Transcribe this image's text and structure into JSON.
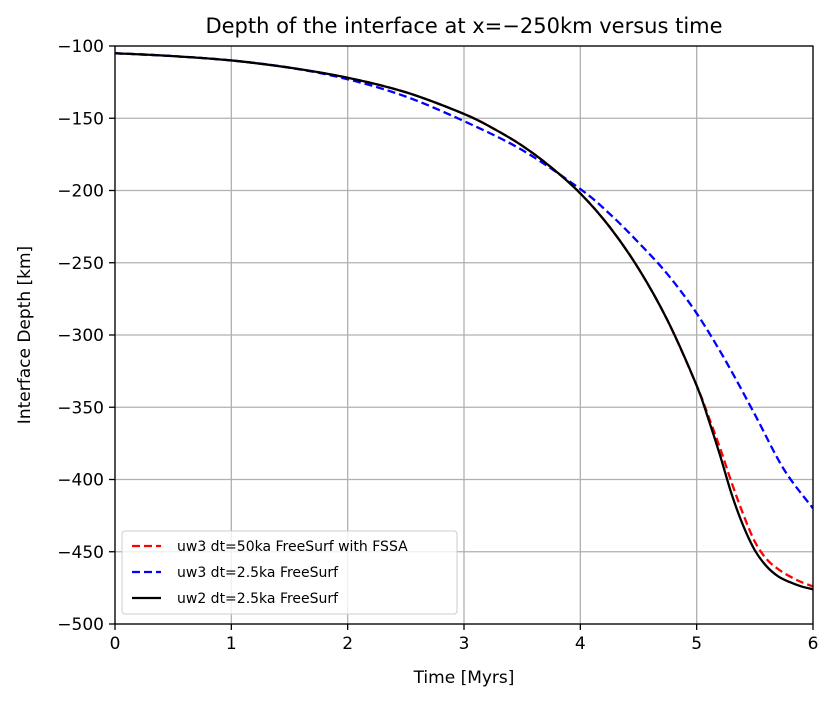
{
  "chart_data": {
    "type": "line",
    "title": "Depth of the interface at x=−250km versus time",
    "xlabel": "Time [Myrs]",
    "ylabel": "Interface Depth [km]",
    "xlim": [
      0,
      6
    ],
    "ylim": [
      -500,
      -100
    ],
    "xticks": [
      0,
      1,
      2,
      3,
      4,
      5,
      6
    ],
    "xtick_labels": [
      "0",
      "1",
      "2",
      "3",
      "4",
      "5",
      "6"
    ],
    "yticks": [
      -500,
      -450,
      -400,
      -350,
      -300,
      -250,
      -200,
      -150,
      -100
    ],
    "ytick_labels": [
      "−500",
      "−450",
      "−400",
      "−350",
      "−300",
      "−250",
      "−200",
      "−150",
      "−100"
    ],
    "grid": true,
    "legend_position": "lower-left",
    "series": [
      {
        "name": "uw3 dt=50ka FreeSurf with FSSA",
        "color": "#ff0000",
        "linestyle": "dashed",
        "x": [
          0,
          0.5,
          1,
          1.5,
          2,
          2.5,
          3,
          3.25,
          3.5,
          3.75,
          4,
          4.25,
          4.5,
          4.75,
          5,
          5.1,
          5.2,
          5.3,
          5.4,
          5.5,
          5.6,
          5.7,
          5.8,
          5.9,
          6
        ],
        "y": [
          -105,
          -107,
          -110,
          -115,
          -122,
          -132,
          -147,
          -157,
          -169,
          -184,
          -202,
          -225,
          -254,
          -290,
          -335,
          -356,
          -378,
          -402,
          -424,
          -443,
          -455,
          -462,
          -467,
          -471,
          -474
        ]
      },
      {
        "name": "uw3 dt=2.5ka FreeSurf",
        "color": "#0000ff",
        "linestyle": "dashed",
        "x": [
          0,
          0.5,
          1,
          1.5,
          2,
          2.5,
          3,
          3.5,
          4,
          4.25,
          4.5,
          4.75,
          5,
          5.25,
          5.5,
          5.75,
          6
        ],
        "y": [
          -105,
          -107,
          -110,
          -115,
          -123,
          -135,
          -152,
          -172,
          -199,
          -216,
          -236,
          -258,
          -285,
          -318,
          -355,
          -393,
          -420
        ]
      },
      {
        "name": "uw2 dt=2.5ka FreeSurf",
        "color": "#000000",
        "linestyle": "solid",
        "x": [
          0,
          0.5,
          1,
          1.5,
          2,
          2.5,
          3,
          3.25,
          3.5,
          3.75,
          4,
          4.25,
          4.5,
          4.75,
          5,
          5.1,
          5.2,
          5.3,
          5.4,
          5.5,
          5.6,
          5.7,
          5.8,
          5.9,
          6
        ],
        "y": [
          -105,
          -107,
          -110,
          -115,
          -122,
          -132,
          -147,
          -157,
          -169,
          -184,
          -202,
          -225,
          -254,
          -290,
          -335,
          -358,
          -383,
          -410,
          -432,
          -449,
          -460,
          -467,
          -471,
          -474,
          -476
        ]
      }
    ]
  }
}
